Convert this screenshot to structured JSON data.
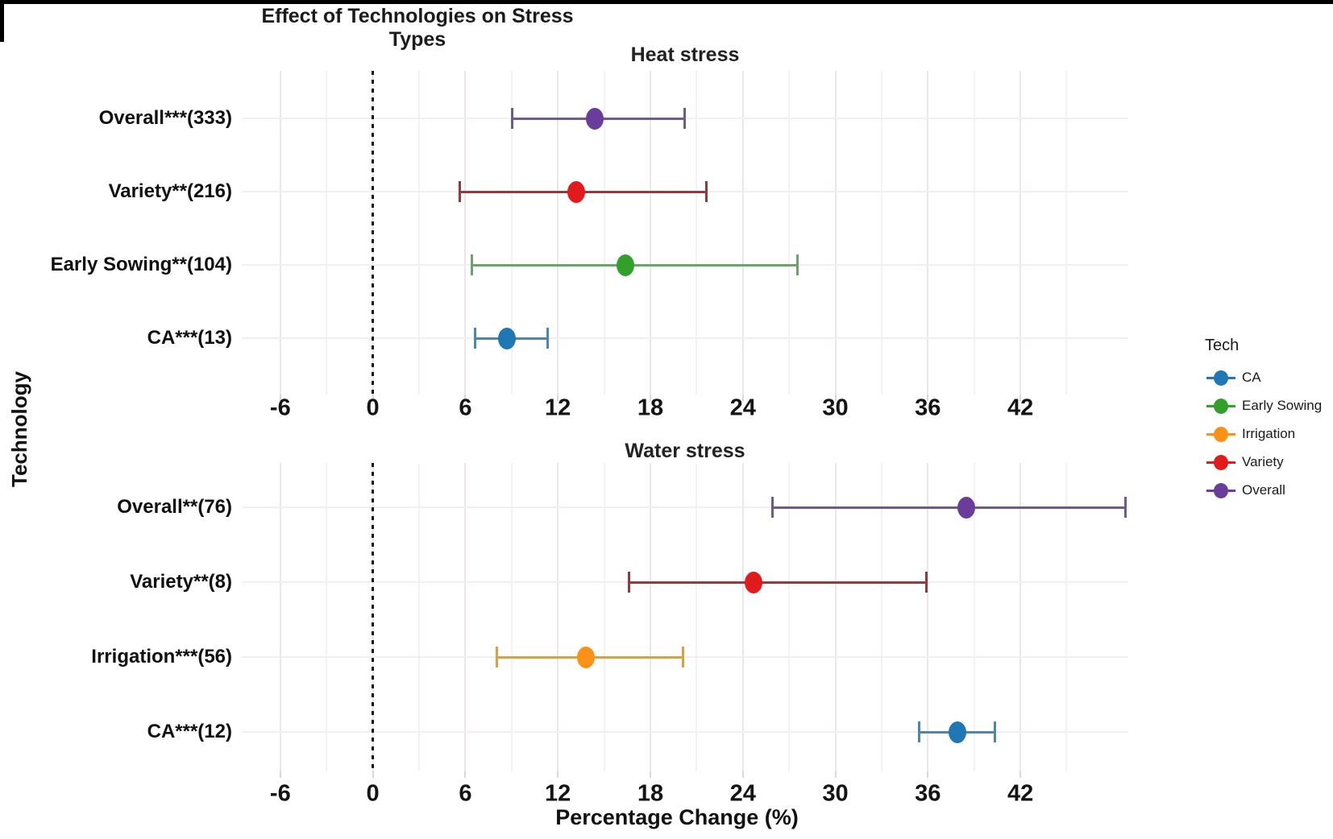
{
  "title": "Effect of Technologies on Stress Types",
  "y_axis_title": "Technology",
  "x_axis_title": "Percentage Change (%)",
  "legend": {
    "title": "Tech",
    "position": "right",
    "items": [
      {
        "label": "CA",
        "color": "#1f78b4"
      },
      {
        "label": "Early Sowing",
        "color": "#33a02c"
      },
      {
        "label": "Irrigation",
        "color": "#fb9116"
      },
      {
        "label": "Variety",
        "color": "#e31a1c"
      },
      {
        "label": "Overall",
        "color": "#6a3d9a"
      }
    ]
  },
  "colors": {
    "CA": "#1f78b4",
    "Early Sowing": "#33a02c",
    "Irrigation": "#fb9116",
    "Variety": "#e31a1c",
    "Overall": "#6a3d9a"
  },
  "bar_colors": {
    "CA": "#4d87ad",
    "Early Sowing": "#6ba36b",
    "Irrigation": "#d9a145",
    "Variety": "#95393c",
    "Overall": "#6e5b87"
  },
  "chart_data": {
    "type": "scatter",
    "subtype": "forest_plot_with_error_bars",
    "grid": true,
    "zero_line": 0,
    "x_range": [
      -8.5,
      49
    ],
    "x_ticks": [
      -6,
      0,
      6,
      12,
      18,
      24,
      30,
      36,
      42
    ],
    "x_minor": [
      -3,
      3,
      9,
      15,
      21,
      27,
      33,
      39,
      45
    ],
    "xlabel": "Percentage Change (%)",
    "ylabel": "Technology",
    "panels": [
      {
        "title": "Heat stress",
        "rows": [
          {
            "label": "Overall***(333)",
            "tech": "Overall",
            "estimate": 14.4,
            "ci_low": 9.0,
            "ci_high": 20.2
          },
          {
            "label": "Variety**(216)",
            "tech": "Variety",
            "estimate": 13.2,
            "ci_low": 5.6,
            "ci_high": 21.6
          },
          {
            "label": "Early Sowing**(104)",
            "tech": "Early Sowing",
            "estimate": 16.4,
            "ci_low": 6.4,
            "ci_high": 27.5
          },
          {
            "label": "CA***(13)",
            "tech": "CA",
            "estimate": 8.7,
            "ci_low": 6.6,
            "ci_high": 11.3
          }
        ]
      },
      {
        "title": "Water stress",
        "rows": [
          {
            "label": "Overall**(76)",
            "tech": "Overall",
            "estimate": 38.5,
            "ci_low": 25.9,
            "ci_high": 48.8
          },
          {
            "label": "Variety**(8)",
            "tech": "Variety",
            "estimate": 24.7,
            "ci_low": 16.6,
            "ci_high": 35.9
          },
          {
            "label": "Irrigation***(56)",
            "tech": "Irrigation",
            "estimate": 13.8,
            "ci_low": 8.0,
            "ci_high": 20.1
          },
          {
            "label": "CA***(12)",
            "tech": "CA",
            "estimate": 37.9,
            "ci_low": 35.4,
            "ci_high": 40.3
          }
        ]
      }
    ]
  }
}
